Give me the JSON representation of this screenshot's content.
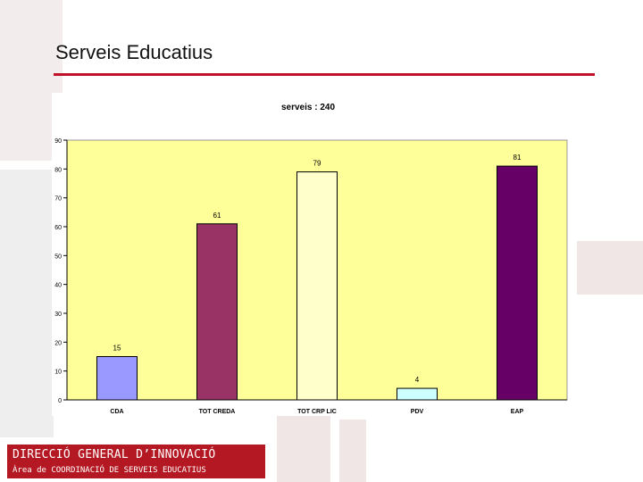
{
  "slide": {
    "title": "Serveis Educatius"
  },
  "footer": {
    "line1": "DIRECCIÓ GENERAL D’INNOVACIÓ",
    "line2": "Àrea de COORDINACIÓ DE SERVEIS EDUCATIUS",
    "background": "#b41822"
  },
  "chart_data": {
    "type": "bar",
    "title": "serveis : 240",
    "categories": [
      "CDA",
      "TOT CREDA",
      "TOT CRP LIC",
      "PDV",
      "EAP"
    ],
    "values": [
      15,
      61,
      79,
      4,
      81
    ],
    "colors": [
      "#9999ff",
      "#993366",
      "#ffffcc",
      "#ccffff",
      "#660066"
    ],
    "ylim": [
      0,
      90
    ],
    "yticks": [
      "0",
      "10",
      "20",
      "30",
      "40",
      "50",
      "60",
      "70",
      "80",
      "90"
    ],
    "plot_background": "#ffff99",
    "grid": false,
    "legend": "none"
  }
}
